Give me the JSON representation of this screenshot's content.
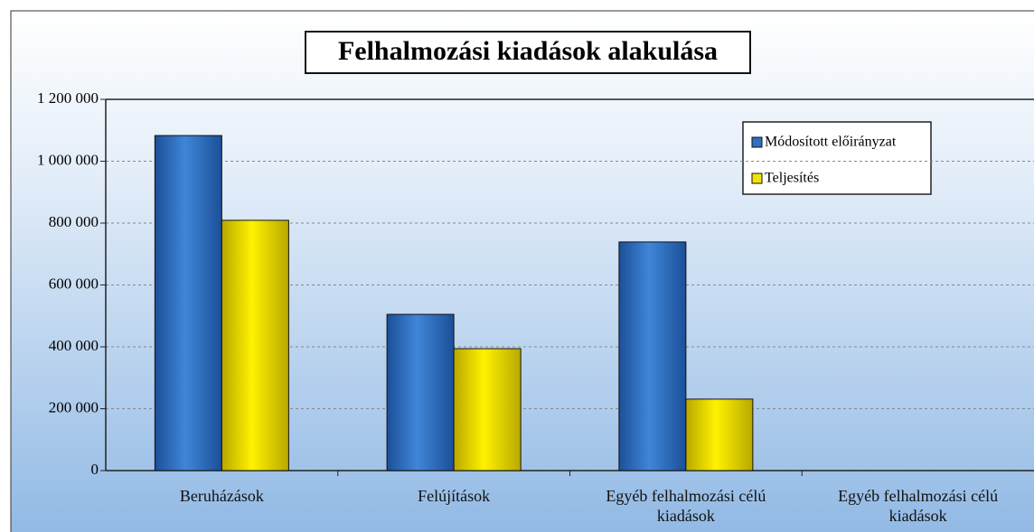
{
  "chart_data": {
    "type": "bar",
    "title": "Felhalmozási kiadások alakulása",
    "categories": [
      "Beruházások",
      "Felújítások",
      "Egyéb felhalmozási célú kiadások",
      "Egyéb felhalmozási célú kiadások"
    ],
    "series": [
      {
        "name": "Módosított előirányzat",
        "color": "#2f6fc0",
        "values": [
          1083000,
          505000,
          739000,
          null
        ]
      },
      {
        "name": "Teljesítés",
        "color": "#f2e400",
        "values": [
          809000,
          394000,
          231000,
          null
        ]
      }
    ],
    "ylim": [
      0,
      1200000
    ],
    "yticks": [
      0,
      {
        "value": 200000,
        "label": "200 000"
      },
      {
        "value": 400000,
        "label": "400 000"
      },
      {
        "value": 600000,
        "label": "600 000"
      },
      {
        "value": 800000,
        "label": "800 000"
      },
      {
        "value": 1000000,
        "label": "1 000 000"
      },
      {
        "value": 1200000,
        "label": "1 200 000"
      }
    ],
    "grid": true,
    "legend": "upper right"
  }
}
